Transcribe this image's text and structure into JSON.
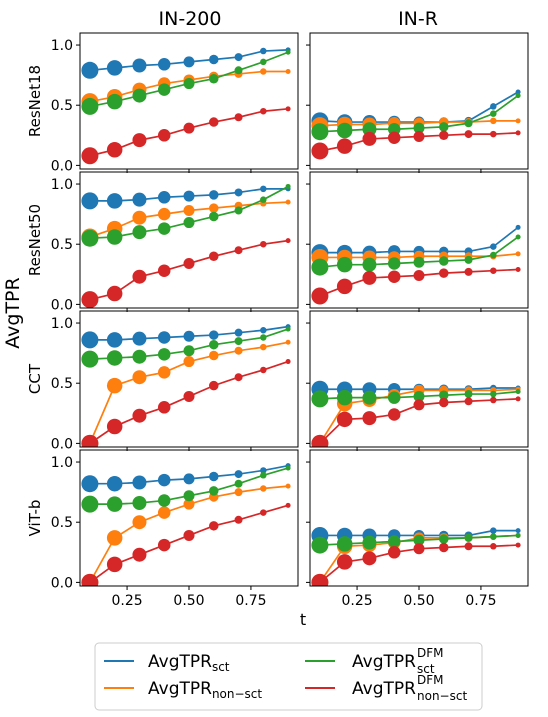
{
  "figure": {
    "ylabel": "AvgTPR",
    "xlabel": "t",
    "col_titles": [
      "IN-200",
      "IN-R"
    ],
    "row_labels": [
      "ResNet18",
      "ResNet50",
      "CCT",
      "ViT-b"
    ]
  },
  "legend": {
    "placement": "bottom-center",
    "entries": [
      {
        "base": "AvgTPR",
        "sub": "sct",
        "sup": "",
        "color": "#1f77b4"
      },
      {
        "base": "AvgTPR",
        "sub": "non−sct",
        "sup": "",
        "color": "#ff7f0e"
      },
      {
        "base": "AvgTPR",
        "sub": "sct",
        "sup": "DFM",
        "color": "#2ca02c"
      },
      {
        "base": "AvgTPR",
        "sub": "non−sct",
        "sup": "DFM",
        "color": "#d62728"
      }
    ]
  },
  "chart_data": {
    "type": "line",
    "layout": "grid 4 rows x 2 columns, shared axes",
    "x": [
      0.1,
      0.2,
      0.3,
      0.4,
      0.5,
      0.6,
      0.7,
      0.8,
      0.9
    ],
    "xlim": [
      0.06,
      0.94
    ],
    "ylim": [
      -0.03,
      1.1
    ],
    "xticks": [
      0.25,
      0.5,
      0.75
    ],
    "xtick_labels": [
      "0.25",
      "0.50",
      "0.75"
    ],
    "yticks": [
      0.0,
      0.5,
      1.0
    ],
    "ytick_labels": [
      "0.0",
      "0.5",
      "1.0"
    ],
    "marker_size_note": "marker size decreases with t",
    "series_colors": {
      "sct": "#1f77b4",
      "non_sct": "#ff7f0e",
      "dfm_sct": "#2ca02c",
      "dfm_non_sct": "#d62728"
    },
    "panels": [
      {
        "row": 0,
        "col": 0,
        "series": {
          "sct": [
            0.79,
            0.81,
            0.83,
            0.84,
            0.86,
            0.88,
            0.9,
            0.95,
            0.96
          ],
          "non_sct": [
            0.53,
            0.57,
            0.63,
            0.68,
            0.71,
            0.74,
            0.76,
            0.78,
            0.78
          ],
          "dfm_sct": [
            0.49,
            0.53,
            0.58,
            0.63,
            0.68,
            0.72,
            0.79,
            0.86,
            0.94
          ],
          "dfm_non_sct": [
            0.08,
            0.13,
            0.21,
            0.25,
            0.31,
            0.36,
            0.4,
            0.45,
            0.47
          ]
        }
      },
      {
        "row": 0,
        "col": 1,
        "series": {
          "sct": [
            0.37,
            0.36,
            0.36,
            0.36,
            0.36,
            0.36,
            0.37,
            0.49,
            0.61
          ],
          "non_sct": [
            0.33,
            0.34,
            0.34,
            0.35,
            0.35,
            0.36,
            0.36,
            0.37,
            0.37
          ],
          "dfm_sct": [
            0.28,
            0.29,
            0.3,
            0.3,
            0.31,
            0.32,
            0.35,
            0.43,
            0.58
          ],
          "dfm_non_sct": [
            0.12,
            0.16,
            0.22,
            0.23,
            0.24,
            0.25,
            0.26,
            0.26,
            0.27
          ]
        }
      },
      {
        "row": 1,
        "col": 0,
        "series": {
          "sct": [
            0.86,
            0.86,
            0.87,
            0.89,
            0.9,
            0.91,
            0.93,
            0.96,
            0.96
          ],
          "non_sct": [
            0.56,
            0.63,
            0.72,
            0.75,
            0.78,
            0.8,
            0.82,
            0.84,
            0.85
          ],
          "dfm_sct": [
            0.55,
            0.56,
            0.6,
            0.63,
            0.68,
            0.73,
            0.78,
            0.87,
            0.98
          ],
          "dfm_non_sct": [
            0.04,
            0.09,
            0.23,
            0.28,
            0.34,
            0.4,
            0.45,
            0.5,
            0.53
          ]
        }
      },
      {
        "row": 1,
        "col": 1,
        "series": {
          "sct": [
            0.43,
            0.43,
            0.43,
            0.44,
            0.44,
            0.44,
            0.44,
            0.48,
            0.64
          ],
          "non_sct": [
            0.39,
            0.39,
            0.39,
            0.39,
            0.4,
            0.4,
            0.4,
            0.4,
            0.42
          ],
          "dfm_sct": [
            0.31,
            0.33,
            0.33,
            0.34,
            0.35,
            0.36,
            0.37,
            0.41,
            0.56
          ],
          "dfm_non_sct": [
            0.07,
            0.15,
            0.22,
            0.23,
            0.24,
            0.26,
            0.27,
            0.28,
            0.29
          ]
        }
      },
      {
        "row": 2,
        "col": 0,
        "series": {
          "sct": [
            0.86,
            0.86,
            0.87,
            0.88,
            0.89,
            0.9,
            0.92,
            0.94,
            0.97
          ],
          "non_sct": [
            0.0,
            0.48,
            0.55,
            0.59,
            0.68,
            0.73,
            0.77,
            0.8,
            0.84
          ],
          "dfm_sct": [
            0.7,
            0.71,
            0.72,
            0.74,
            0.77,
            0.82,
            0.85,
            0.88,
            0.95
          ],
          "dfm_non_sct": [
            0.0,
            0.14,
            0.23,
            0.3,
            0.39,
            0.48,
            0.55,
            0.61,
            0.68
          ]
        }
      },
      {
        "row": 2,
        "col": 1,
        "series": {
          "sct": [
            0.45,
            0.45,
            0.45,
            0.45,
            0.45,
            0.45,
            0.45,
            0.46,
            0.46
          ],
          "non_sct": [
            0.0,
            0.33,
            0.36,
            0.4,
            0.44,
            0.44,
            0.44,
            0.44,
            0.45
          ],
          "dfm_sct": [
            0.37,
            0.38,
            0.38,
            0.38,
            0.39,
            0.4,
            0.41,
            0.41,
            0.43
          ],
          "dfm_non_sct": [
            0.0,
            0.2,
            0.21,
            0.24,
            0.32,
            0.34,
            0.35,
            0.36,
            0.37
          ]
        }
      },
      {
        "row": 3,
        "col": 0,
        "series": {
          "sct": [
            0.82,
            0.82,
            0.83,
            0.85,
            0.86,
            0.88,
            0.9,
            0.93,
            0.97
          ],
          "non_sct": [
            0.0,
            0.37,
            0.5,
            0.58,
            0.65,
            0.71,
            0.75,
            0.78,
            0.8
          ],
          "dfm_sct": [
            0.65,
            0.65,
            0.66,
            0.68,
            0.72,
            0.76,
            0.82,
            0.89,
            0.95
          ],
          "dfm_non_sct": [
            0.0,
            0.15,
            0.23,
            0.31,
            0.39,
            0.47,
            0.52,
            0.58,
            0.64
          ]
        }
      },
      {
        "row": 3,
        "col": 1,
        "series": {
          "sct": [
            0.39,
            0.39,
            0.39,
            0.39,
            0.39,
            0.39,
            0.39,
            0.43,
            0.43
          ],
          "non_sct": [
            0.0,
            0.3,
            0.31,
            0.33,
            0.37,
            0.37,
            0.37,
            0.38,
            0.39
          ],
          "dfm_sct": [
            0.31,
            0.32,
            0.33,
            0.34,
            0.35,
            0.36,
            0.37,
            0.38,
            0.39
          ],
          "dfm_non_sct": [
            0.0,
            0.17,
            0.2,
            0.25,
            0.28,
            0.29,
            0.3,
            0.3,
            0.31
          ]
        }
      }
    ]
  }
}
